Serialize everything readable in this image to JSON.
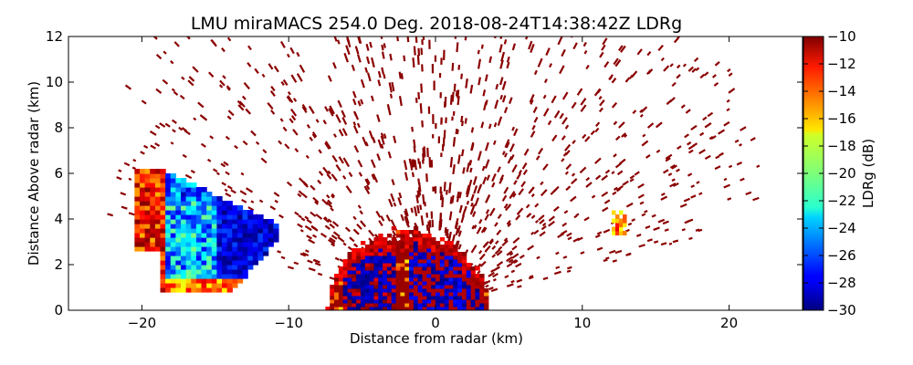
{
  "chart_data": {
    "type": "heatmap",
    "title": "LMU miraMACS 254.0 Deg. 2018-08-24T14:38:42Z  LDRg",
    "xlabel": "Distance from radar (km)",
    "ylabel": "Distance Above radar  (km)",
    "xlim": [
      -25,
      25
    ],
    "ylim": [
      0,
      12
    ],
    "x_ticks": [
      -20,
      -10,
      0,
      10,
      20
    ],
    "y_ticks": [
      0,
      2,
      4,
      6,
      8,
      10,
      12
    ],
    "colorbar": {
      "label": "LDRg (dB)",
      "colormap": "jet",
      "vmin": -30,
      "vmax": -10,
      "ticks": [
        -30,
        -28,
        -26,
        -24,
        -22,
        -20,
        -18,
        -16,
        -14,
        -12,
        -10
      ]
    },
    "features": [
      {
        "name": "cloud-block-left",
        "x_range": [
          -20.5,
          -10.5
        ],
        "y_range": [
          0.8,
          6.2
        ],
        "ldr_typical": [
          -26,
          -12
        ]
      },
      {
        "name": "near-radar-echo",
        "x_range": [
          -7.5,
          3.5
        ],
        "y_range": [
          0,
          3.6
        ],
        "ldr_typical": [
          -30,
          -10
        ]
      },
      {
        "name": "patch-right",
        "x_range": [
          12,
          13
        ],
        "y_range": [
          3.3,
          4.3
        ],
        "ldr_typical": [
          -18,
          -12
        ]
      },
      {
        "name": "noise-speckle",
        "x_range": [
          -22,
          22
        ],
        "y_range": [
          0.5,
          12
        ],
        "ldr_typical": [
          -10,
          -10
        ]
      }
    ],
    "colors": {
      "background": "#ffffff",
      "noise": "#8b0000"
    }
  }
}
